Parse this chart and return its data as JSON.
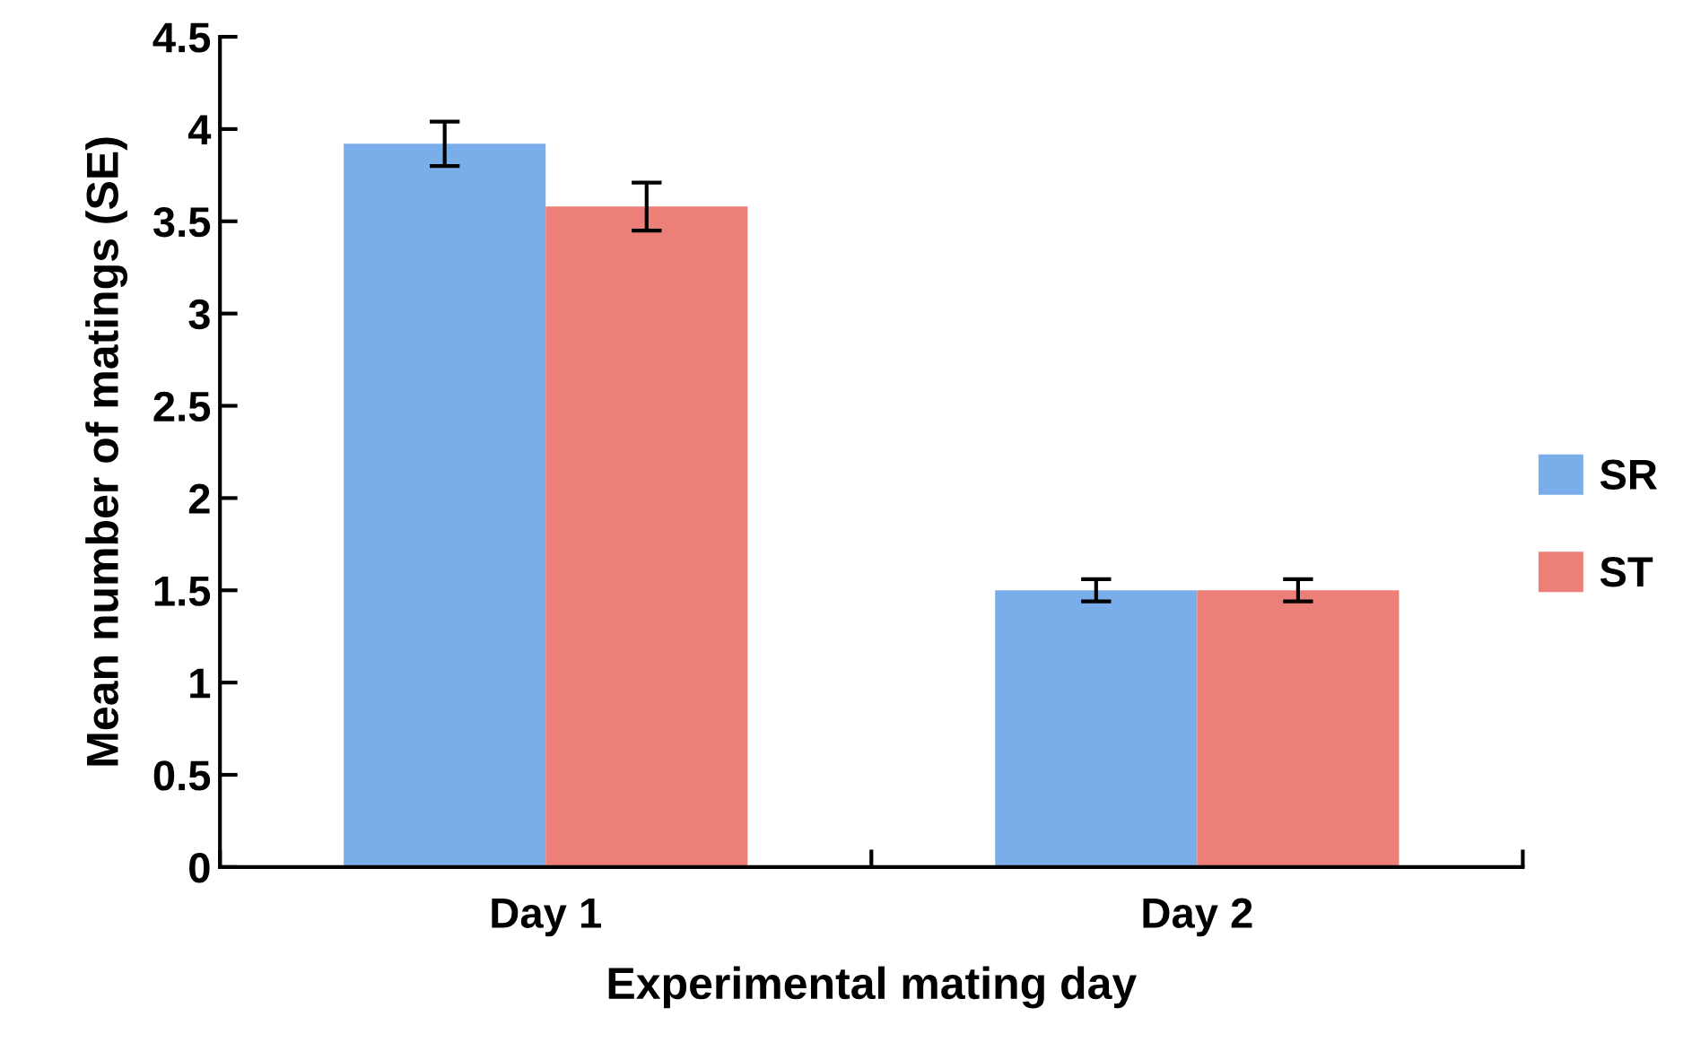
{
  "chart_data": {
    "type": "bar",
    "xlabel": "Experimental mating day",
    "ylabel": "Mean number of matings (SE)",
    "categories": [
      "Day 1",
      "Day 2"
    ],
    "series": [
      {
        "name": "SR",
        "color": "#7aaeea",
        "values": [
          3.92,
          1.5
        ],
        "errors": [
          0.12,
          0.06
        ]
      },
      {
        "name": "ST",
        "color": "#ec7f78",
        "values": [
          3.58,
          1.5
        ],
        "errors": [
          0.13,
          0.06
        ]
      }
    ],
    "ylim": [
      0,
      4.5
    ],
    "yticks": [
      0,
      0.5,
      1,
      1.5,
      2,
      2.5,
      3,
      3.5,
      4,
      4.5
    ],
    "grid": false,
    "legend": "right"
  }
}
